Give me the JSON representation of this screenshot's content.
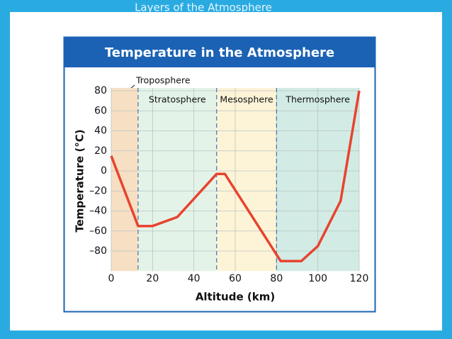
{
  "slide_title": "Layers of the Atmosphere",
  "chart_data": {
    "type": "line",
    "title": "Temperature in the Atmosphere",
    "xlabel": "Altitude (km)",
    "ylabel": "Temperature (°C)",
    "x": [
      0,
      13,
      20,
      32,
      51,
      55,
      82,
      92,
      100,
      111,
      120
    ],
    "values": [
      15,
      -55,
      -55,
      -46,
      -3,
      -3,
      -90,
      -90,
      -75,
      -30,
      80
    ],
    "color": "#e8432e",
    "xlim": [
      0,
      120
    ],
    "xticks": [
      0,
      20,
      40,
      60,
      80,
      100,
      120
    ],
    "ylim": [
      -100,
      80
    ],
    "yticks": [
      {
        "value": -80,
        "label": "–80"
      },
      {
        "value": -60,
        "label": "–60"
      },
      {
        "value": -40,
        "label": "–40"
      },
      {
        "value": -20,
        "label": "–20"
      },
      0,
      20,
      40,
      60,
      80
    ],
    "grid": true,
    "layers": [
      {
        "name": "Troposphere",
        "start": 0,
        "end": 13,
        "color": "#f7dfc4"
      },
      {
        "name": "Stratosphere",
        "start": 13,
        "end": 51,
        "color": "#e4f3e8"
      },
      {
        "name": "Mesosphere",
        "start": 51,
        "end": 80,
        "color": "#fdf4d8"
      },
      {
        "name": "Thermosphere",
        "start": 80,
        "end": 120,
        "color": "#d2ebe5"
      }
    ]
  }
}
